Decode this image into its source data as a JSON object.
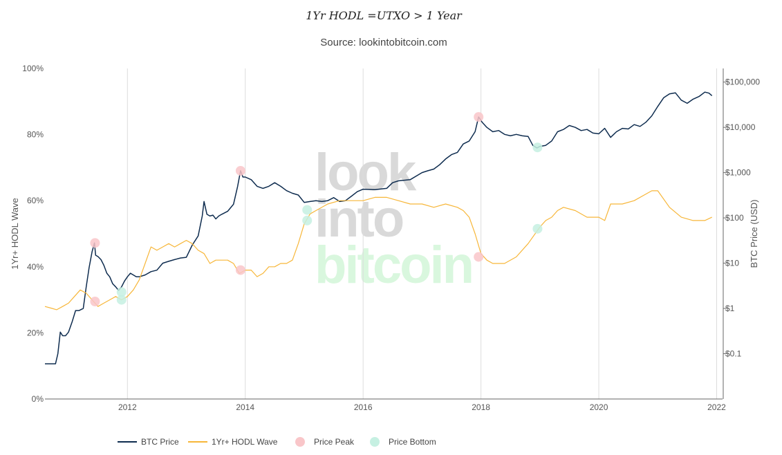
{
  "chart_data": {
    "type": "line",
    "title": "1Yr HODL =UTXO > 1 Year",
    "subtitle": "Source: lookintobitcoin.com",
    "watermark": [
      "look",
      "into",
      "bitcoin"
    ],
    "watermark_colors": [
      "#d9d9d9",
      "#d9d9d9",
      "#d9f7de"
    ],
    "x_ticks": [
      "2012",
      "2014",
      "2016",
      "2018",
      "2020",
      "2022"
    ],
    "x_range": [
      2010.6,
      2022.1
    ],
    "y_left": {
      "label": "1Yr+ HODL Wave",
      "range": [
        0,
        100
      ],
      "ticks": [
        "0%",
        "20%",
        "40%",
        "60%",
        "80%",
        "100%"
      ]
    },
    "y_right": {
      "label": "BTC Price (USD)",
      "scale": "log",
      "range": [
        0.01,
        200000
      ],
      "tick_values": [
        0.1,
        1,
        10,
        100,
        1000,
        10000,
        100000
      ],
      "ticks": [
        "$0.1",
        "$1",
        "$10",
        "$100",
        "$1,000",
        "$10,000",
        "$100,000"
      ]
    },
    "colors": {
      "price": "#0d2b4e",
      "hodl": "#f7b638",
      "peak": "#f9c6c9",
      "bottom": "#c6f0e2"
    },
    "series": [
      {
        "name": "BTC Price",
        "axis": "right",
        "x": [
          2010.6,
          2010.66,
          2010.72,
          2010.78,
          2010.82,
          2010.86,
          2010.9,
          2010.95,
          2011.0,
          2011.06,
          2011.12,
          2011.18,
          2011.25,
          2011.3,
          2011.35,
          2011.4,
          2011.44,
          2011.46,
          2011.5,
          2011.55,
          2011.6,
          2011.65,
          2011.7,
          2011.75,
          2011.8,
          2011.85,
          2011.9,
          2011.95,
          2012.0,
          2012.05,
          2012.1,
          2012.15,
          2012.2,
          2012.3,
          2012.4,
          2012.5,
          2012.6,
          2012.7,
          2012.8,
          2012.9,
          2013.0,
          2013.1,
          2013.2,
          2013.27,
          2013.3,
          2013.35,
          2013.4,
          2013.45,
          2013.5,
          2013.55,
          2013.6,
          2013.7,
          2013.8,
          2013.87,
          2013.92,
          2013.96,
          2014.0,
          2014.1,
          2014.2,
          2014.3,
          2014.4,
          2014.5,
          2014.6,
          2014.7,
          2014.8,
          2014.9,
          2015.0,
          2015.1,
          2015.2,
          2015.3,
          2015.4,
          2015.5,
          2015.6,
          2015.7,
          2015.8,
          2015.9,
          2016.0,
          2016.2,
          2016.4,
          2016.5,
          2016.6,
          2016.8,
          2017.0,
          2017.1,
          2017.2,
          2017.3,
          2017.4,
          2017.5,
          2017.6,
          2017.7,
          2017.8,
          2017.9,
          2017.96,
          2018.02,
          2018.1,
          2018.2,
          2018.3,
          2018.4,
          2018.5,
          2018.6,
          2018.7,
          2018.8,
          2018.88,
          2018.95,
          2019.0,
          2019.1,
          2019.2,
          2019.3,
          2019.4,
          2019.5,
          2019.6,
          2019.7,
          2019.8,
          2019.9,
          2020.0,
          2020.1,
          2020.2,
          2020.3,
          2020.4,
          2020.5,
          2020.6,
          2020.7,
          2020.8,
          2020.9,
          2021.0,
          2021.1,
          2021.2,
          2021.3,
          2021.4,
          2021.5,
          2021.6,
          2021.7,
          2021.8,
          2021.87,
          2021.92
        ],
        "values": [
          0.06,
          0.06,
          0.06,
          0.06,
          0.1,
          0.3,
          0.25,
          0.25,
          0.3,
          0.5,
          0.9,
          0.9,
          1.0,
          3.0,
          8.0,
          18.0,
          28.0,
          15.0,
          14.0,
          12.0,
          9.0,
          6.0,
          5.0,
          3.5,
          3.0,
          2.5,
          3.0,
          4.0,
          5.0,
          6.0,
          5.5,
          5.0,
          5.0,
          5.5,
          6.5,
          7.0,
          10.0,
          11.0,
          12.0,
          13.0,
          13.5,
          25.0,
          40.0,
          110.0,
          230.0,
          120.0,
          110.0,
          115.0,
          95.0,
          110.0,
          120.0,
          140.0,
          200.0,
          500.0,
          1100.0,
          800.0,
          800.0,
          700.0,
          500.0,
          450.0,
          500.0,
          600.0,
          500.0,
          400.0,
          350.0,
          320.0,
          220.0,
          230.0,
          240.0,
          230.0,
          240.0,
          280.0,
          230.0,
          240.0,
          300.0,
          380.0,
          430.0,
          420.0,
          450.0,
          600.0,
          660.0,
          700.0,
          1000.0,
          1100.0,
          1200.0,
          1500.0,
          2000.0,
          2500.0,
          2800.0,
          4300.0,
          5000.0,
          8000.0,
          17000.0,
          13000.0,
          10000.0,
          8000.0,
          8500.0,
          7000.0,
          6500.0,
          7000.0,
          6500.0,
          6300.0,
          4000.0,
          3500.0,
          3800.0,
          4000.0,
          5000.0,
          8000.0,
          9000.0,
          11000.0,
          10000.0,
          8500.0,
          9000.0,
          7500.0,
          7200.0,
          9500.0,
          6000.0,
          8000.0,
          9500.0,
          9200.0,
          11500.0,
          10500.0,
          13000.0,
          18000.0,
          29000.0,
          45000.0,
          55000.0,
          58000.0,
          40000.0,
          34000.0,
          42000.0,
          48000.0,
          60000.0,
          57000.0,
          50000.0
        ],
        "color": "#0d2b4e"
      },
      {
        "name": "1Yr+ HODL Wave",
        "axis": "left",
        "x": [
          2010.6,
          2010.7,
          2010.8,
          2010.9,
          2011.0,
          2011.1,
          2011.2,
          2011.3,
          2011.4,
          2011.5,
          2011.6,
          2011.7,
          2011.8,
          2011.9,
          2012.0,
          2012.1,
          2012.2,
          2012.3,
          2012.4,
          2012.5,
          2012.6,
          2012.7,
          2012.8,
          2012.9,
          2013.0,
          2013.1,
          2013.15,
          2013.2,
          2013.3,
          2013.4,
          2013.5,
          2013.6,
          2013.7,
          2013.8,
          2013.9,
          2014.0,
          2014.1,
          2014.2,
          2014.3,
          2014.4,
          2014.5,
          2014.6,
          2014.7,
          2014.8,
          2014.9,
          2015.0,
          2015.1,
          2015.2,
          2015.4,
          2015.6,
          2015.8,
          2016.0,
          2016.2,
          2016.4,
          2016.6,
          2016.8,
          2017.0,
          2017.2,
          2017.4,
          2017.6,
          2017.7,
          2017.8,
          2017.9,
          2018.0,
          2018.1,
          2018.2,
          2018.4,
          2018.6,
          2018.8,
          2019.0,
          2019.1,
          2019.2,
          2019.3,
          2019.4,
          2019.6,
          2019.8,
          2019.9,
          2020.0,
          2020.1,
          2020.2,
          2020.4,
          2020.6,
          2020.8,
          2020.9,
          2021.0,
          2021.2,
          2021.4,
          2021.6,
          2021.8,
          2021.92
        ],
        "values": [
          28,
          27.5,
          27,
          28,
          29,
          31,
          33,
          32,
          30,
          28,
          29,
          30,
          31,
          30,
          31,
          33,
          36,
          41,
          46,
          45,
          46,
          47,
          46,
          47,
          48,
          47,
          46,
          45,
          44,
          41,
          42,
          42,
          42,
          41,
          38,
          39,
          39,
          37,
          38,
          40,
          40,
          41,
          41,
          42,
          47,
          53,
          56,
          57,
          59,
          60,
          60,
          60,
          61,
          61,
          60,
          59,
          59,
          58,
          59,
          58,
          57,
          55,
          50,
          44,
          42,
          41,
          41,
          43,
          47,
          52,
          54,
          55,
          57,
          58,
          57,
          55,
          55,
          55,
          54,
          59,
          59,
          60,
          62,
          63,
          63,
          58,
          55,
          54,
          54,
          55
        ],
        "color": "#f7b638"
      }
    ],
    "price_peaks": [
      {
        "x": 2011.45,
        "price": 28,
        "hodl": 29.5
      },
      {
        "x": 2013.92,
        "price": 1100,
        "hodl": 39
      },
      {
        "x": 2017.96,
        "price": 17000,
        "hodl": 43
      }
    ],
    "price_bottoms": [
      {
        "x": 2011.9,
        "price": 2.3,
        "hodl": 30
      },
      {
        "x": 2015.05,
        "price": 150,
        "hodl": 54
      },
      {
        "x": 2018.96,
        "price": 3600,
        "hodl": 51.5
      }
    ],
    "legend": [
      {
        "label": "BTC Price",
        "kind": "line",
        "color": "#0d2b4e"
      },
      {
        "label": "1Yr+ HODL Wave",
        "kind": "line",
        "color": "#f7b638"
      },
      {
        "label": "Price Peak",
        "kind": "dot",
        "color": "#f9c6c9"
      },
      {
        "label": "Price Bottom",
        "kind": "dot",
        "color": "#c6f0e2"
      }
    ]
  }
}
